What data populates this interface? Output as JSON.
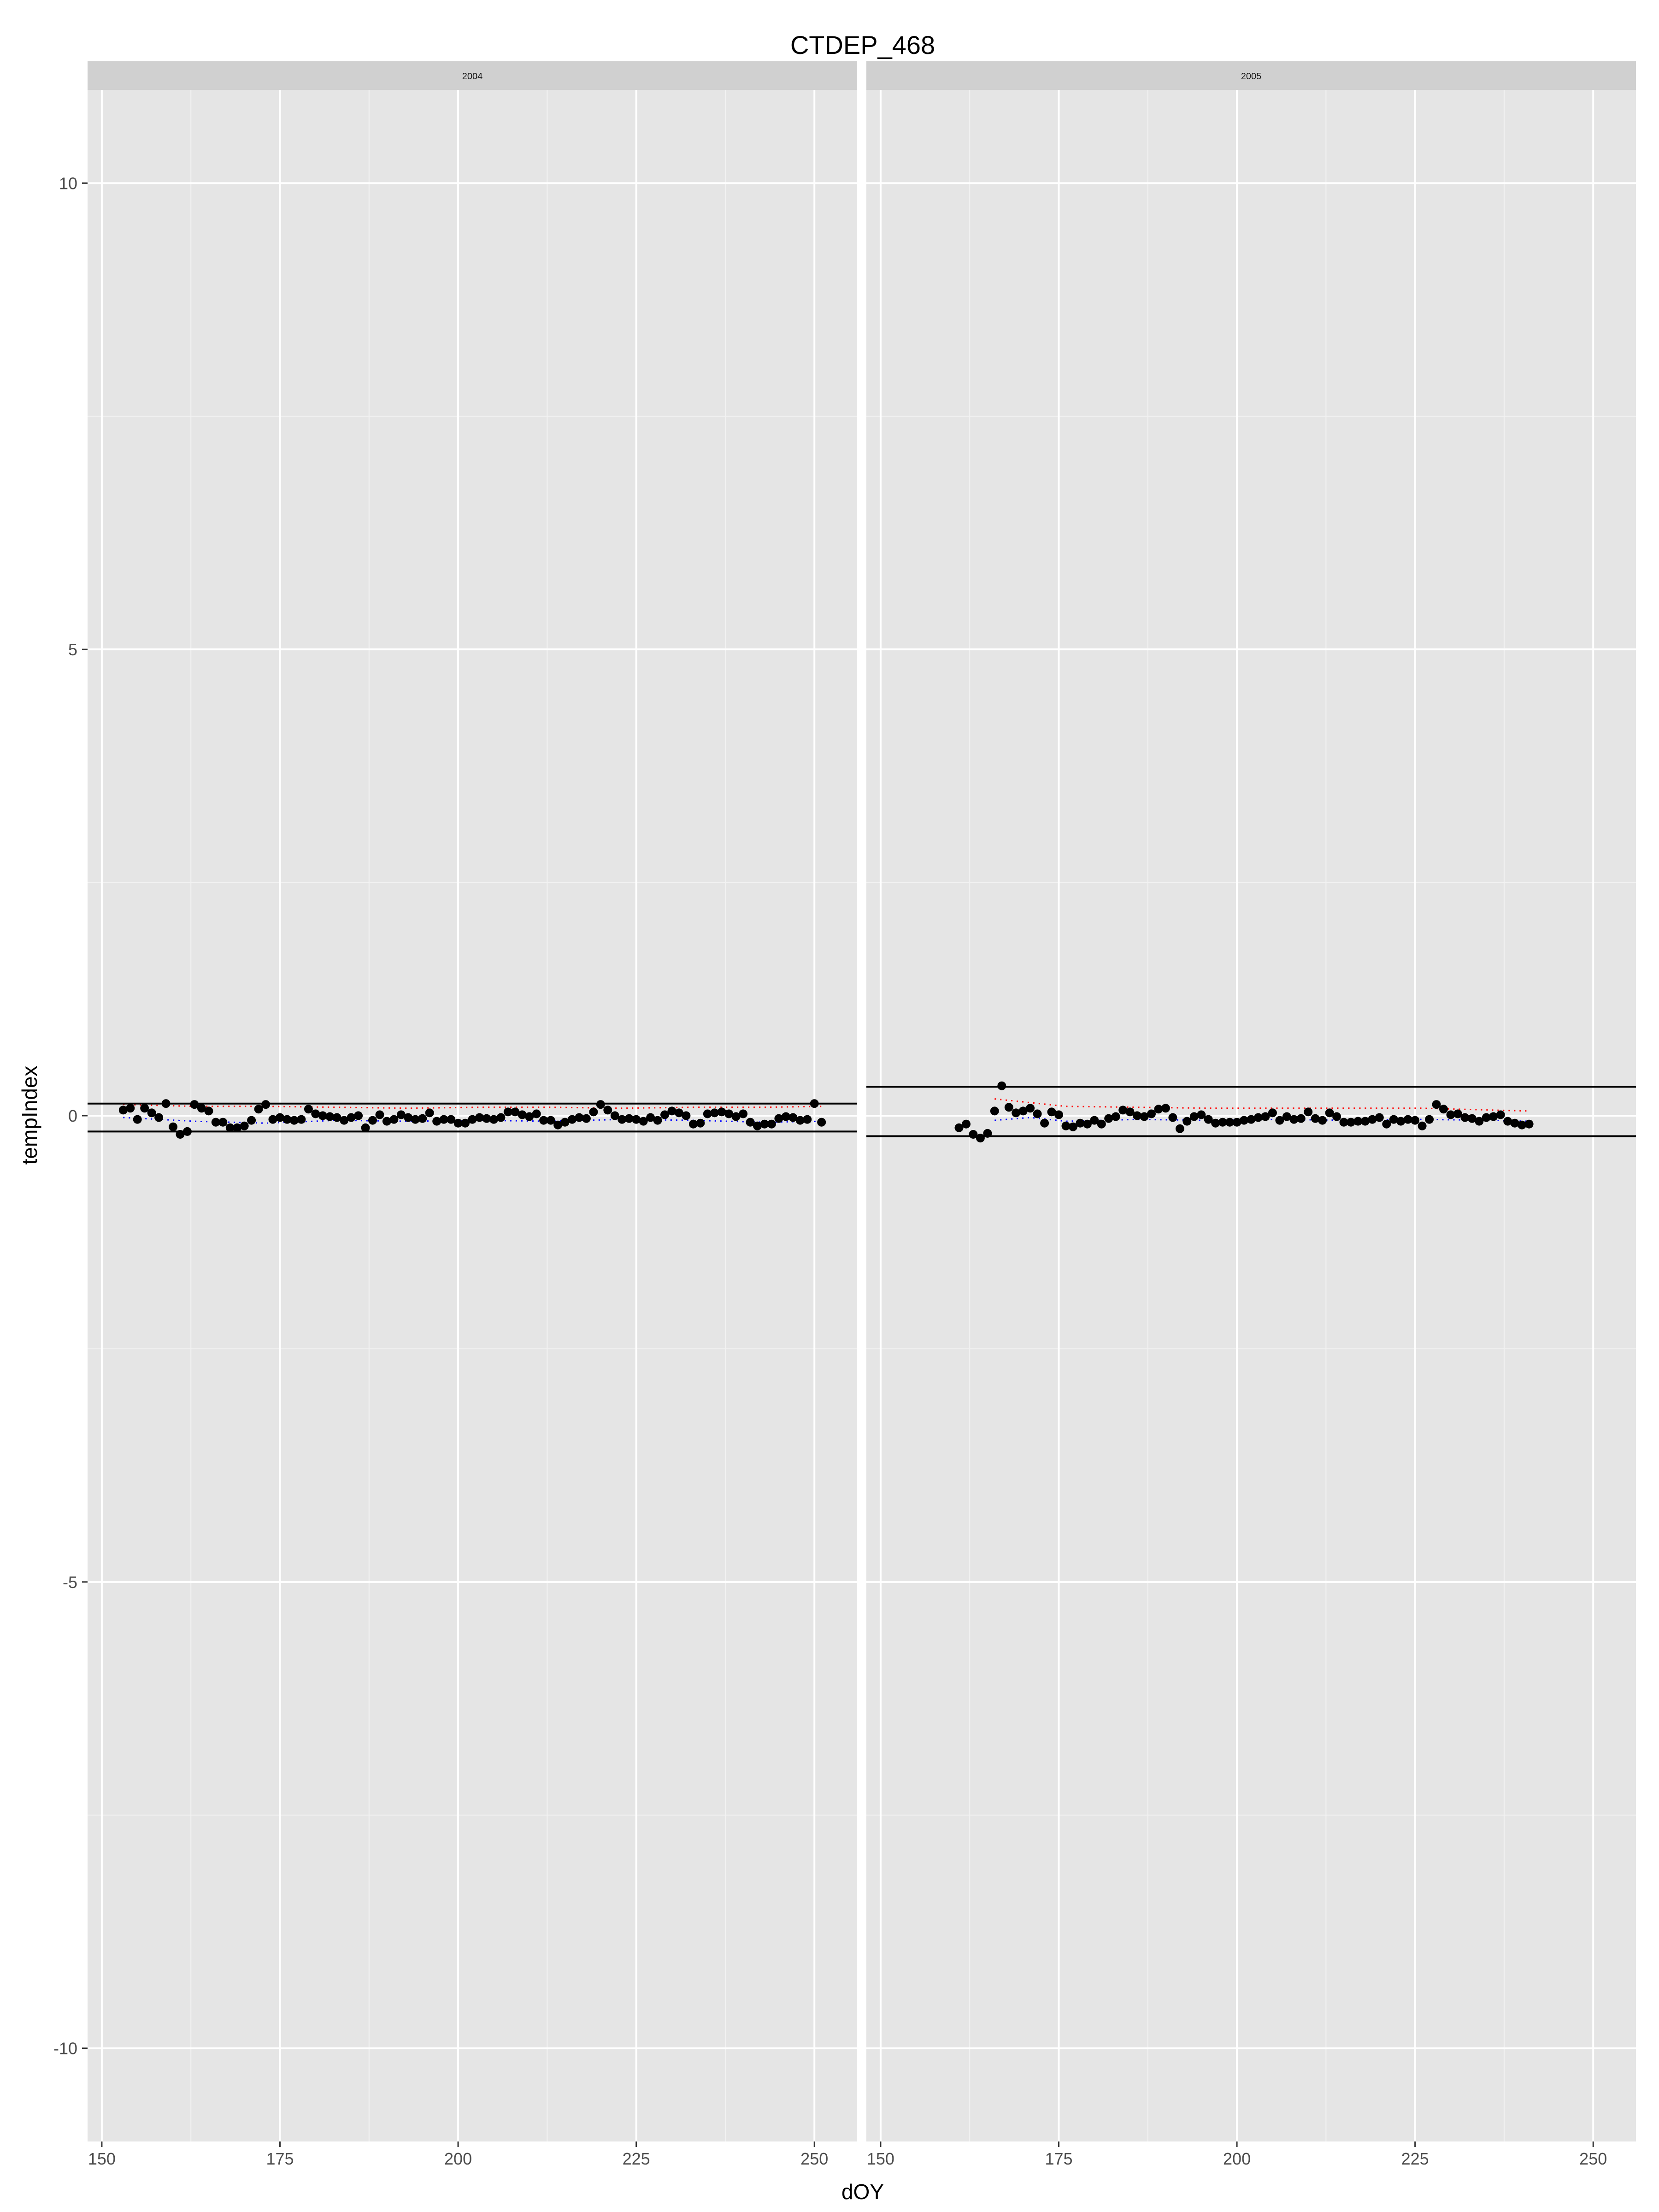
{
  "chart_data": {
    "type": "scatter",
    "title": "CTDEP_468",
    "xlabel": "dOY",
    "ylabel": "tempIndex",
    "xlim": [
      148,
      256
    ],
    "ylim": [
      -11,
      11
    ],
    "x_ticks": [
      150,
      175,
      200,
      225,
      250
    ],
    "x_tick_labels": [
      "150",
      "175",
      "200",
      "225",
      "250"
    ],
    "y_ticks": [
      -10,
      -5,
      0,
      5,
      10
    ],
    "y_tick_labels": [
      "-10",
      "-5",
      "0",
      "5",
      "10"
    ],
    "grid": true,
    "legend": "none",
    "colors": {
      "panel_background": "#e5e5e5",
      "strip_background": "#d0d0d0",
      "grid_major": "#ffffff",
      "grid_minor": "#f2f2f2",
      "points": "#000000",
      "threshold_lines": "#000000",
      "upper_trend": "#ff0000",
      "lower_trend": "#0000ff"
    },
    "panels": [
      {
        "label": "2004",
        "hlines": [
          0.13,
          -0.17
        ],
        "x": [
          153,
          154,
          155,
          156,
          157,
          158,
          159,
          160,
          161,
          162,
          163,
          164,
          165,
          166,
          167,
          168,
          169,
          170,
          171,
          172,
          173,
          174,
          175,
          176,
          177,
          178,
          179,
          180,
          181,
          182,
          183,
          184,
          185,
          186,
          187,
          188,
          189,
          190,
          191,
          192,
          193,
          194,
          195,
          196,
          197,
          198,
          199,
          200,
          201,
          202,
          203,
          204,
          205,
          206,
          207,
          208,
          209,
          210,
          211,
          212,
          213,
          214,
          215,
          216,
          217,
          218,
          219,
          220,
          221,
          222,
          223,
          224,
          225,
          226,
          227,
          228,
          229,
          230,
          231,
          232,
          233,
          234,
          235,
          236,
          237,
          238,
          239,
          240,
          241,
          242,
          243,
          244,
          245,
          246,
          247,
          248,
          249,
          250,
          251
        ],
        "y": [
          0.06,
          0.08,
          -0.04,
          0.08,
          0.03,
          -0.02,
          0.13,
          -0.12,
          -0.2,
          -0.17,
          0.12,
          0.08,
          0.05,
          -0.07,
          -0.07,
          -0.13,
          -0.13,
          -0.11,
          -0.05,
          0.07,
          0.12,
          -0.04,
          -0.02,
          -0.04,
          -0.05,
          -0.04,
          0.07,
          0.02,
          0.0,
          -0.01,
          -0.02,
          -0.05,
          -0.02,
          0.0,
          -0.13,
          -0.05,
          0.01,
          -0.06,
          -0.04,
          0.01,
          -0.02,
          -0.04,
          -0.03,
          0.03,
          -0.06,
          -0.04,
          -0.04,
          -0.08,
          -0.08,
          -0.04,
          -0.02,
          -0.03,
          -0.04,
          -0.02,
          0.04,
          0.04,
          0.01,
          -0.01,
          0.02,
          -0.05,
          -0.05,
          -0.1,
          -0.07,
          -0.04,
          -0.02,
          -0.03,
          0.04,
          0.12,
          0.06,
          0.0,
          -0.04,
          -0.03,
          -0.04,
          -0.06,
          -0.02,
          -0.05,
          0.01,
          0.05,
          0.03,
          0.0,
          -0.09,
          -0.08,
          0.02,
          0.03,
          0.04,
          0.02,
          -0.01,
          0.02,
          -0.07,
          -0.11,
          -0.09,
          -0.09,
          -0.03,
          -0.01,
          -0.02,
          -0.05,
          -0.04,
          0.13,
          -0.07
        ],
        "upper_trend": {
          "x": [
            153,
            163,
            173,
            183,
            193,
            203,
            213,
            223,
            233,
            243,
            251
          ],
          "y": [
            0.12,
            0.1,
            0.1,
            0.09,
            0.08,
            0.09,
            0.09,
            0.08,
            0.09,
            0.09,
            0.1
          ]
        },
        "lower_trend": {
          "x": [
            153,
            163,
            173,
            183,
            193,
            203,
            213,
            223,
            233,
            243,
            251
          ],
          "y": [
            -0.02,
            -0.06,
            -0.08,
            -0.05,
            -0.06,
            -0.05,
            -0.06,
            -0.04,
            -0.05,
            -0.07,
            -0.06
          ]
        }
      },
      {
        "label": "2005",
        "hlines": [
          0.31,
          -0.22
        ],
        "x": [
          161,
          162,
          163,
          164,
          165,
          166,
          167,
          168,
          169,
          170,
          171,
          172,
          173,
          174,
          175,
          176,
          177,
          178,
          179,
          180,
          181,
          182,
          183,
          184,
          185,
          186,
          187,
          188,
          189,
          190,
          191,
          192,
          193,
          194,
          195,
          196,
          197,
          198,
          199,
          200,
          201,
          202,
          203,
          204,
          205,
          206,
          207,
          208,
          209,
          210,
          211,
          212,
          213,
          214,
          215,
          216,
          217,
          218,
          219,
          220,
          221,
          222,
          223,
          224,
          225,
          226,
          227,
          228,
          229,
          230,
          231,
          232,
          233,
          234,
          235,
          236,
          237,
          238,
          239,
          240,
          241
        ],
        "y": [
          -0.13,
          -0.09,
          -0.2,
          -0.24,
          -0.19,
          0.05,
          0.32,
          0.09,
          0.03,
          0.05,
          0.08,
          0.02,
          -0.08,
          0.04,
          0.01,
          -0.11,
          -0.12,
          -0.08,
          -0.09,
          -0.05,
          -0.09,
          -0.03,
          -0.01,
          0.06,
          0.04,
          0.0,
          -0.01,
          0.02,
          0.07,
          0.08,
          -0.02,
          -0.14,
          -0.06,
          -0.01,
          0.01,
          -0.04,
          -0.08,
          -0.07,
          -0.07,
          -0.07,
          -0.05,
          -0.04,
          -0.02,
          -0.01,
          0.03,
          -0.05,
          -0.01,
          -0.04,
          -0.03,
          0.04,
          -0.03,
          -0.05,
          0.03,
          -0.01,
          -0.07,
          -0.07,
          -0.06,
          -0.06,
          -0.04,
          -0.02,
          -0.09,
          -0.04,
          -0.06,
          -0.04,
          -0.05,
          -0.11,
          -0.04,
          0.12,
          0.07,
          0.01,
          0.02,
          -0.02,
          -0.03,
          -0.06,
          -0.02,
          -0.01,
          0.01,
          -0.06,
          -0.08,
          -0.1,
          -0.09
        ],
        "upper_trend": {
          "x": [
            166,
            171,
            176,
            186,
            196,
            206,
            216,
            226,
            236,
            241
          ],
          "y": [
            0.18,
            0.14,
            0.1,
            0.09,
            0.08,
            0.08,
            0.08,
            0.08,
            0.06,
            0.05
          ]
        },
        "lower_trend": {
          "x": [
            166,
            171,
            176,
            186,
            196,
            206,
            216,
            226,
            236,
            241
          ],
          "y": [
            -0.05,
            -0.02,
            -0.06,
            -0.04,
            -0.05,
            -0.04,
            -0.05,
            -0.04,
            -0.05,
            -0.06
          ]
        }
      }
    ]
  }
}
